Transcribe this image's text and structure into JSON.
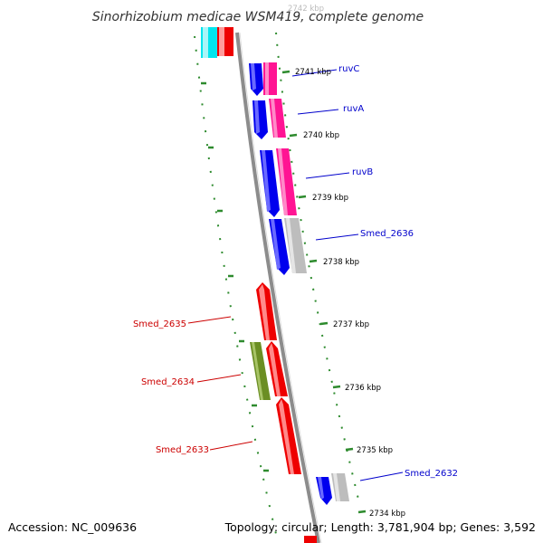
{
  "header": {
    "title": "Sinorhizobium medicae WSM419, complete genome"
  },
  "footer": {
    "accession": "Accession: NC_009636",
    "topology": "Topology: circular; Length: 3,781,904 bp; Genes: 3,592"
  },
  "ticks": {
    "top_faint": "2742 kbp",
    "t2741": "2741 kbp",
    "t2740": "2740 kbp",
    "t2739": "2739 kbp",
    "t2738": "2738 kbp",
    "t2737": "2737 kbp",
    "t2736": "2736 kbp",
    "t2735": "2735 kbp",
    "t2734": "2734 kbp"
  },
  "genes": {
    "ruvC": "ruvC",
    "ruvA": "ruvA",
    "ruvB": "ruvB",
    "smed_2636": "Smed_2636",
    "smed_2635": "Smed_2635",
    "smed_2634": "Smed_2634",
    "smed_2633": "Smed_2633",
    "smed_2632": "Smed_2632"
  },
  "colors": {
    "forward_strand": "#0000ee",
    "reverse_strand": "#ee0000",
    "cog_pink": "#ff1493",
    "cog_gray": "#bdbdbd",
    "cog_olive": "#6b8e23",
    "cog_cyan": "#00e5ee",
    "backbone": "#8c8c8c",
    "ticks": "#2e8b2e"
  }
}
